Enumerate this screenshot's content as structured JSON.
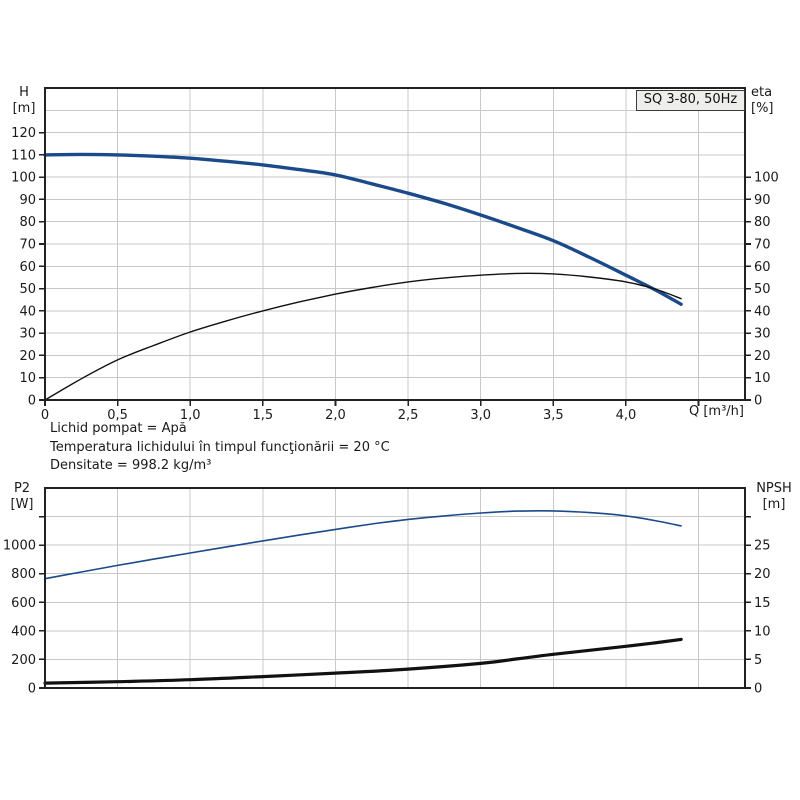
{
  "title_badge": "SQ 3-80, 50Hz",
  "info_lines": [
    "Lichid pompat = Apă",
    "Temperatura lichidului în timpul funcţionării = 20 °C",
    "Densitate = 998.2 kg/m³"
  ],
  "colors": {
    "curve_blue": "#1b4a8b",
    "curve_black": "#111111",
    "grid": "#c8c8c8",
    "axis": "#222222",
    "text": "#1a1a1a",
    "badge_bg": "#eeeeec"
  },
  "chart_data": [
    {
      "type": "line",
      "title": "SQ 3-80, 50Hz",
      "xlabel": "Q [m³/h]",
      "ylabel_left": "H [m]",
      "ylabel_right": "eta [%]",
      "axis_title_left": [
        "H",
        "[m]"
      ],
      "axis_title_right": [
        "eta",
        "[%]"
      ],
      "xlim": [
        0,
        4.82
      ],
      "ylim_left": [
        0,
        140
      ],
      "ylim_right": [
        0,
        140
      ],
      "grid": {
        "x_step": 0.5,
        "y_step": 10
      },
      "x_ticks": [
        {
          "v": 0,
          "l": "0"
        },
        {
          "v": 0.5,
          "l": "0,5"
        },
        {
          "v": 1,
          "l": "1,0"
        },
        {
          "v": 1.5,
          "l": "1,5"
        },
        {
          "v": 2,
          "l": "2,0"
        },
        {
          "v": 2.5,
          "l": "2,5"
        },
        {
          "v": 3,
          "l": "3,0"
        },
        {
          "v": 3.5,
          "l": "3,5"
        },
        {
          "v": 4,
          "l": "4,0"
        },
        {
          "v": 4.5,
          "l": ""
        }
      ],
      "left_ticks": [
        {
          "v": 0,
          "l": "0"
        },
        {
          "v": 10,
          "l": "10"
        },
        {
          "v": 20,
          "l": "20"
        },
        {
          "v": 30,
          "l": "30"
        },
        {
          "v": 40,
          "l": "40"
        },
        {
          "v": 50,
          "l": "50"
        },
        {
          "v": 60,
          "l": "60"
        },
        {
          "v": 70,
          "l": "70"
        },
        {
          "v": 80,
          "l": "80"
        },
        {
          "v": 90,
          "l": "90"
        },
        {
          "v": 100,
          "l": "100"
        },
        {
          "v": 110,
          "l": "110"
        },
        {
          "v": 120,
          "l": "120"
        }
      ],
      "right_ticks": [
        {
          "v": 0,
          "l": "0"
        },
        {
          "v": 10,
          "l": "10"
        },
        {
          "v": 20,
          "l": "20"
        },
        {
          "v": 30,
          "l": "30"
        },
        {
          "v": 40,
          "l": "40"
        },
        {
          "v": 50,
          "l": "50"
        },
        {
          "v": 60,
          "l": "60"
        },
        {
          "v": 70,
          "l": "70"
        },
        {
          "v": 80,
          "l": "80"
        },
        {
          "v": 90,
          "l": "90"
        },
        {
          "v": 100,
          "l": "100"
        }
      ],
      "series": [
        {
          "id": "h-curve",
          "name": "H",
          "axis": "left",
          "color": "#1b4a8b",
          "width": 3.4,
          "x": [
            0,
            0.25,
            0.5,
            0.75,
            1,
            1.25,
            1.5,
            1.75,
            2,
            2.25,
            2.5,
            2.75,
            3,
            3.25,
            3.5,
            3.75,
            4,
            4.2,
            4.38
          ],
          "y": [
            110,
            110.2,
            110,
            109.4,
            108.5,
            107.1,
            105.5,
            103.4,
            101,
            97,
            92.8,
            88.2,
            83,
            77.4,
            71.5,
            64,
            56,
            49.5,
            43
          ]
        },
        {
          "id": "eta-curve",
          "name": "eta",
          "axis": "right",
          "color": "#111111",
          "width": 1.4,
          "x": [
            0,
            0.25,
            0.5,
            0.75,
            1,
            1.25,
            1.5,
            1.75,
            2,
            2.25,
            2.5,
            2.75,
            3,
            3.25,
            3.5,
            3.75,
            4,
            4.2,
            4.38
          ],
          "y": [
            0,
            9.5,
            18,
            24.5,
            30.5,
            35.5,
            40,
            44,
            47.5,
            50.5,
            53,
            54.8,
            56,
            56.8,
            56.6,
            55.2,
            53,
            49.8,
            45.5
          ]
        }
      ]
    },
    {
      "type": "line",
      "xlabel": "",
      "ylabel_left": "P2 [W]",
      "ylabel_right": "NPSH [m]",
      "axis_title_left": [
        "P2",
        "[W]"
      ],
      "axis_title_right": [
        "NPSH",
        "[m]"
      ],
      "xlim": [
        0,
        4.82
      ],
      "ylim_left": [
        0,
        1400
      ],
      "ylim_right": [
        0,
        35
      ],
      "grid": {
        "x_step": 0.5,
        "y_step": 200
      },
      "x_ticks": [],
      "left_ticks": [
        {
          "v": 0,
          "l": "0"
        },
        {
          "v": 200,
          "l": "200"
        },
        {
          "v": 400,
          "l": "400"
        },
        {
          "v": 600,
          "l": "600"
        },
        {
          "v": 800,
          "l": "800"
        },
        {
          "v": 1000,
          "l": "1000"
        },
        {
          "v": 1200,
          "l": ""
        }
      ],
      "right_ticks": [
        {
          "v": 0,
          "l": "0"
        },
        {
          "v": 5,
          "l": "5"
        },
        {
          "v": 10,
          "l": "10"
        },
        {
          "v": 15,
          "l": "15"
        },
        {
          "v": 20,
          "l": "20"
        },
        {
          "v": 25,
          "l": "25"
        },
        {
          "v": 30,
          "l": ""
        }
      ],
      "series": [
        {
          "id": "p2-curve",
          "name": "P2",
          "axis": "left",
          "color": "#1b4a8b",
          "width": 1.6,
          "x": [
            0,
            0.25,
            0.5,
            0.75,
            1,
            1.25,
            1.5,
            1.75,
            2,
            2.25,
            2.5,
            2.75,
            3,
            3.25,
            3.5,
            3.75,
            4,
            4.2,
            4.38
          ],
          "y": [
            765,
            812,
            858,
            902,
            945,
            988,
            1030,
            1070,
            1110,
            1148,
            1180,
            1205,
            1225,
            1238,
            1240,
            1228,
            1205,
            1172,
            1135
          ]
        },
        {
          "id": "npsh-curve",
          "name": "NPSH",
          "axis": "right",
          "color": "#111111",
          "width": 3.2,
          "x": [
            0,
            0.5,
            1,
            1.5,
            2,
            2.5,
            3,
            3.25,
            3.5,
            3.75,
            4,
            4.2,
            4.38
          ],
          "y": [
            0.85,
            1.1,
            1.45,
            2,
            2.6,
            3.3,
            4.3,
            5.1,
            5.9,
            6.6,
            7.3,
            7.9,
            8.5
          ]
        }
      ]
    }
  ]
}
